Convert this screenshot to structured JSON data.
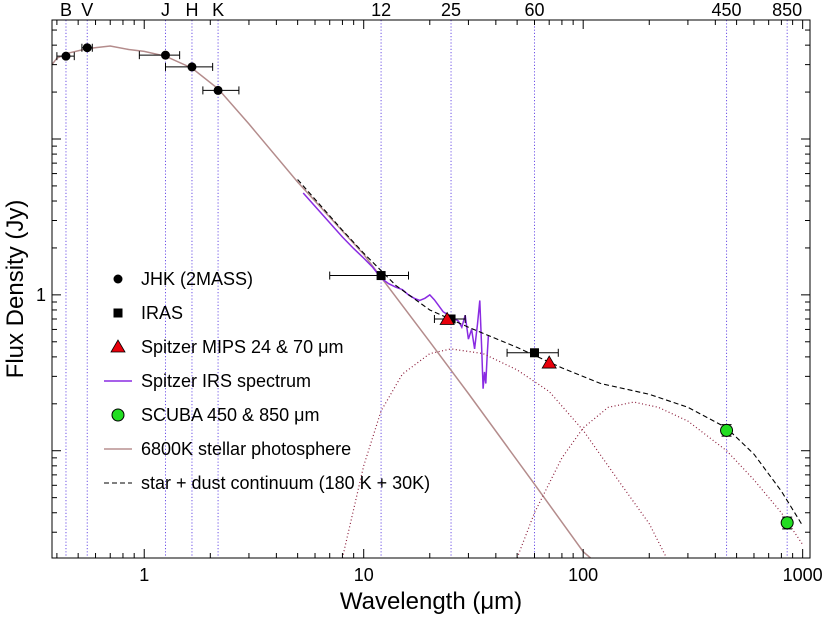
{
  "chart_data": {
    "type": "scatter",
    "xlabel": "Wavelength (μm)",
    "ylabel": "Flux Density (Jy)",
    "x_scale": "log",
    "y_scale": "log",
    "xlim": [
      0.38,
      1080
    ],
    "ylim": [
      0.0205,
      58
    ],
    "x_ticks": [
      {
        "value": 1,
        "label": "1"
      },
      {
        "value": 10,
        "label": "10"
      },
      {
        "value": 100,
        "label": "100"
      },
      {
        "value": 1000,
        "label": "1000"
      }
    ],
    "y_ticks": [
      {
        "value": 1,
        "label": "1"
      }
    ],
    "band_markers": [
      {
        "label": "B",
        "wavelength": 0.44
      },
      {
        "label": "V",
        "wavelength": 0.55
      },
      {
        "label": "J",
        "wavelength": 1.25
      },
      {
        "label": "H",
        "wavelength": 1.65
      },
      {
        "label": "K",
        "wavelength": 2.17
      },
      {
        "label": "12",
        "wavelength": 12
      },
      {
        "label": "25",
        "wavelength": 25
      },
      {
        "label": "60",
        "wavelength": 60
      },
      {
        "label": "450",
        "wavelength": 450
      },
      {
        "label": "850",
        "wavelength": 850
      }
    ],
    "legend": [
      {
        "label": "JHK (2MASS)",
        "marker": "circle",
        "color": "#000000"
      },
      {
        "label": "IRAS",
        "marker": "square",
        "color": "#000000"
      },
      {
        "label": "Spitzer MIPS 24 & 70 μm",
        "marker": "triangle",
        "color": "#e8000b"
      },
      {
        "label": "Spitzer IRS spectrum",
        "marker": "line",
        "color": "#8a2be2"
      },
      {
        "label": "SCUBA 450 & 850 μm",
        "marker": "circle",
        "color": "#22dd22"
      },
      {
        "label": "6800K stellar photosphere",
        "marker": "line",
        "color": "#b89090"
      },
      {
        "label": "star + dust continuum (180 K + 30K)",
        "marker": "dashed",
        "color": "#000000"
      }
    ],
    "series": [
      {
        "name": "JHK (2MASS)",
        "marker": "circle",
        "points": [
          {
            "x": 0.44,
            "y": 34.0,
            "xerr": [
              0.4,
              0.48
            ]
          },
          {
            "x": 0.55,
            "y": 38.5,
            "xerr": [
              0.52,
              0.58
            ]
          },
          {
            "x": 1.25,
            "y": 34.5,
            "xerr": [
              0.95,
              1.45
            ]
          },
          {
            "x": 1.65,
            "y": 29.0,
            "xerr": [
              1.25,
              2.05
            ]
          },
          {
            "x": 2.17,
            "y": 20.5,
            "xerr": [
              1.85,
              2.7
            ]
          }
        ]
      },
      {
        "name": "IRAS",
        "marker": "square",
        "points": [
          {
            "x": 12,
            "y": 1.33,
            "xerr": [
              7.0,
              16.0
            ]
          },
          {
            "x": 25,
            "y": 0.7,
            "xerr": [
              21.0,
              29.0
            ]
          },
          {
            "x": 60,
            "y": 0.425,
            "xerr": [
              45.0,
              77.0
            ]
          }
        ]
      },
      {
        "name": "Spitzer MIPS 24 & 70 μm",
        "marker": "triangle",
        "points": [
          {
            "x": 24,
            "y": 0.695
          },
          {
            "x": 70,
            "y": 0.365
          }
        ]
      },
      {
        "name": "SCUBA 450 & 850 μm",
        "marker": "circle",
        "points": [
          {
            "x": 450,
            "y": 0.135,
            "yerr": [
              0.124,
              0.147
            ]
          },
          {
            "x": 850,
            "y": 0.0345,
            "yerr": [
              0.0315,
              0.0375
            ]
          }
        ]
      },
      {
        "name": "6800K stellar photosphere",
        "style": "line",
        "points": [
          [
            0.38,
            30
          ],
          [
            0.4,
            33
          ],
          [
            0.45,
            35.5
          ],
          [
            0.55,
            38
          ],
          [
            0.7,
            39.5
          ],
          [
            0.85,
            37.5
          ],
          [
            1.0,
            36.5
          ],
          [
            1.25,
            34
          ],
          [
            1.65,
            28.5
          ],
          [
            2.17,
            21
          ],
          [
            3,
            12.5
          ],
          [
            5,
            5.3
          ],
          [
            10,
            1.82
          ],
          [
            20,
            0.5
          ],
          [
            30,
            0.233
          ],
          [
            60,
            0.061
          ],
          [
            100,
            0.0225
          ],
          [
            108,
            0.0205
          ]
        ]
      },
      {
        "name": "Spitzer IRS spectrum",
        "style": "line",
        "points": [
          [
            5.3,
            4.5
          ],
          [
            6,
            3.7
          ],
          [
            7,
            2.9
          ],
          [
            8,
            2.35
          ],
          [
            9,
            1.98
          ],
          [
            10,
            1.72
          ],
          [
            11,
            1.5
          ],
          [
            12,
            1.28
          ],
          [
            13,
            1.18
          ],
          [
            14,
            1.12
          ],
          [
            15,
            1.08
          ],
          [
            16,
            1.0
          ],
          [
            17,
            0.95
          ],
          [
            18,
            0.92
          ],
          [
            19,
            0.95
          ],
          [
            20,
            1.0
          ],
          [
            21,
            0.93
          ],
          [
            22,
            0.85
          ],
          [
            23,
            0.78
          ],
          [
            24,
            0.75
          ],
          [
            25,
            0.73
          ],
          [
            26,
            0.7
          ],
          [
            27,
            0.68
          ],
          [
            28,
            0.62
          ],
          [
            29,
            0.74
          ],
          [
            30,
            0.52
          ],
          [
            31,
            0.6
          ],
          [
            32,
            0.45
          ],
          [
            33,
            0.65
          ],
          [
            33.8,
            0.92
          ],
          [
            34.5,
            0.45
          ],
          [
            35,
            0.25
          ],
          [
            35.5,
            0.32
          ],
          [
            36,
            0.27
          ],
          [
            36.5,
            0.4
          ],
          [
            37,
            0.55
          ]
        ]
      },
      {
        "name": "star + dust continuum (180 K + 30K)",
        "style": "dashed",
        "points": [
          [
            5,
            5.5
          ],
          [
            8,
            2.6
          ],
          [
            10,
            1.85
          ],
          [
            14,
            1.15
          ],
          [
            20,
            0.8
          ],
          [
            30,
            0.62
          ],
          [
            50,
            0.46
          ],
          [
            80,
            0.34
          ],
          [
            120,
            0.27
          ],
          [
            200,
            0.23
          ],
          [
            300,
            0.19
          ],
          [
            450,
            0.14
          ],
          [
            600,
            0.095
          ],
          [
            800,
            0.055
          ],
          [
            1000,
            0.033
          ]
        ]
      },
      {
        "name": "180 K dust component",
        "style": "dotted",
        "points": [
          [
            8,
            0.0205
          ],
          [
            10,
            0.08
          ],
          [
            12,
            0.18
          ],
          [
            15,
            0.31
          ],
          [
            20,
            0.42
          ],
          [
            25,
            0.45
          ],
          [
            35,
            0.42
          ],
          [
            50,
            0.33
          ],
          [
            70,
            0.24
          ],
          [
            100,
            0.135
          ],
          [
            150,
            0.06
          ],
          [
            200,
            0.034
          ],
          [
            240,
            0.0205
          ]
        ]
      },
      {
        "name": "30 K dust component",
        "style": "dotted",
        "points": [
          [
            50,
            0.0205
          ],
          [
            60,
            0.04
          ],
          [
            80,
            0.09
          ],
          [
            100,
            0.14
          ],
          [
            130,
            0.19
          ],
          [
            170,
            0.205
          ],
          [
            220,
            0.19
          ],
          [
            300,
            0.155
          ],
          [
            450,
            0.1
          ],
          [
            600,
            0.065
          ],
          [
            800,
            0.04
          ],
          [
            1000,
            0.025
          ]
        ]
      }
    ]
  }
}
